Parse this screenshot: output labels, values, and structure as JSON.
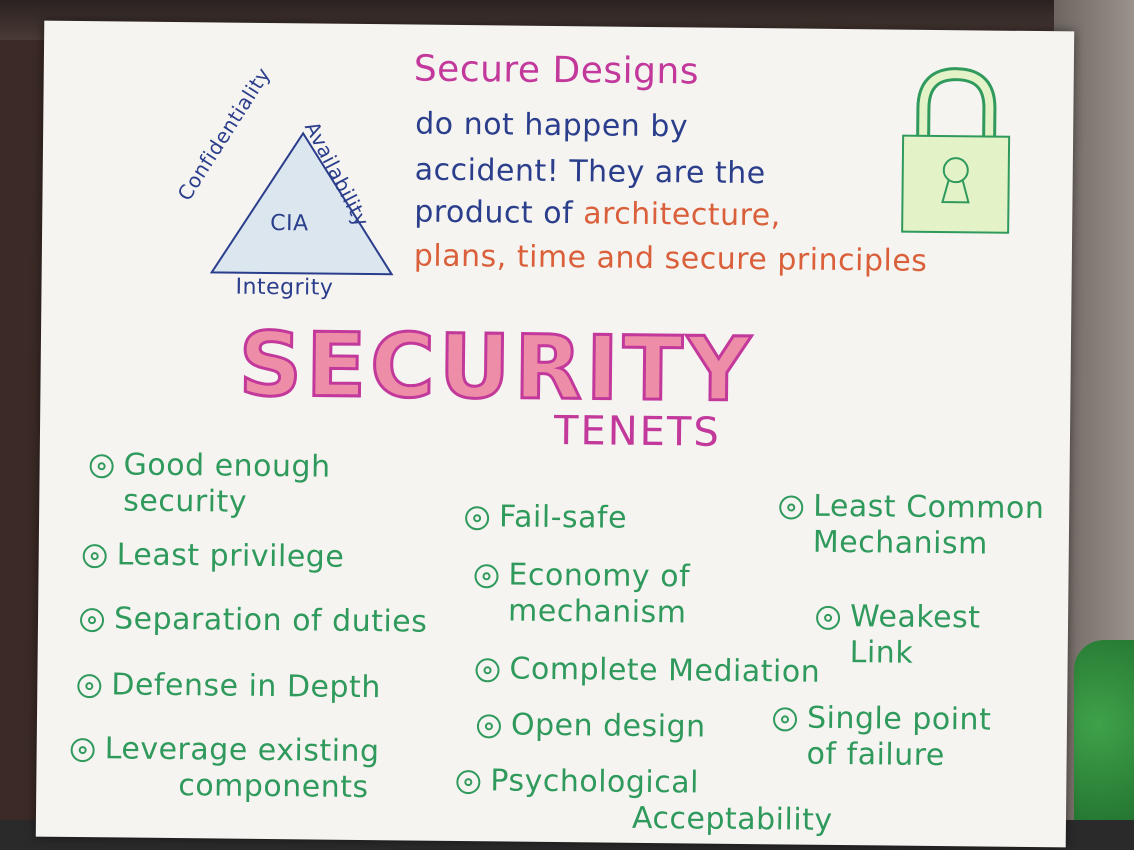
{
  "cia": {
    "center": "CIA",
    "left": "Confidentiality",
    "right": "Availability",
    "bottom": "Integrity"
  },
  "heading": {
    "title": "Secure Designs",
    "line1": "do not happen by",
    "line2": "accident! They are the",
    "line3a": "product of",
    "line3b": "architecture,",
    "line4": "plans, time and secure principles"
  },
  "main_title": "SECURITY",
  "subtitle": "TENETS",
  "colors": {
    "blue": "#2a3e8c",
    "magenta": "#c2389b",
    "pink": "#ee8da7",
    "orange": "#d9603a",
    "green": "#2f9a5c",
    "lock_fill": "#e4f2c8"
  },
  "icons": [
    "padlock-icon",
    "cia-triangle-icon"
  ],
  "tenets": {
    "col1": [
      {
        "l1": "Good enough",
        "l2": "security"
      },
      {
        "l1": "Least privilege",
        "l2": ""
      },
      {
        "l1": "Separation of duties",
        "l2": ""
      },
      {
        "l1": "Defense in Depth",
        "l2": ""
      },
      {
        "l1": "Leverage existing",
        "l2": "components"
      }
    ],
    "col2": [
      {
        "l1": "Fail-safe",
        "l2": ""
      },
      {
        "l1": "Economy of",
        "l2": "mechanism"
      },
      {
        "l1": "Complete Mediation",
        "l2": ""
      },
      {
        "l1": "Open design",
        "l2": ""
      },
      {
        "l1": "Psychological",
        "l2": "Acceptability"
      }
    ],
    "col3": [
      {
        "l1": "Least Common",
        "l2": "Mechanism"
      },
      {
        "l1": "Weakest",
        "l2": "Link"
      },
      {
        "l1": "Single point",
        "l2": "of failure"
      }
    ]
  }
}
